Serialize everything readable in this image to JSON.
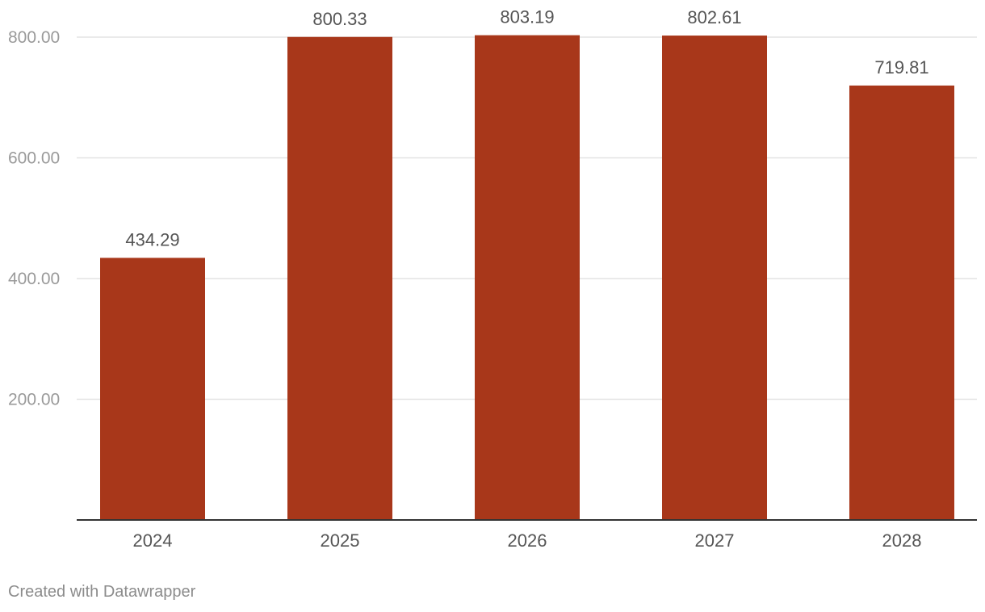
{
  "chart_data": {
    "type": "bar",
    "categories": [
      "2024",
      "2025",
      "2026",
      "2027",
      "2028"
    ],
    "values": [
      434.29,
      800.33,
      803.19,
      802.61,
      719.81
    ],
    "value_labels": [
      "434.29",
      "800.33",
      "803.19",
      "802.61",
      "719.81"
    ],
    "title": "",
    "xlabel": "",
    "ylabel": "",
    "ylim": [
      0,
      800
    ],
    "yticks": [
      200,
      400,
      600,
      800
    ],
    "ytick_labels": [
      "200.00",
      "400.00",
      "600.00",
      "800.00"
    ],
    "grid": true,
    "legend": "none",
    "bar_color": "#a8371a"
  },
  "footer": {
    "credit": "Created with Datawrapper"
  }
}
